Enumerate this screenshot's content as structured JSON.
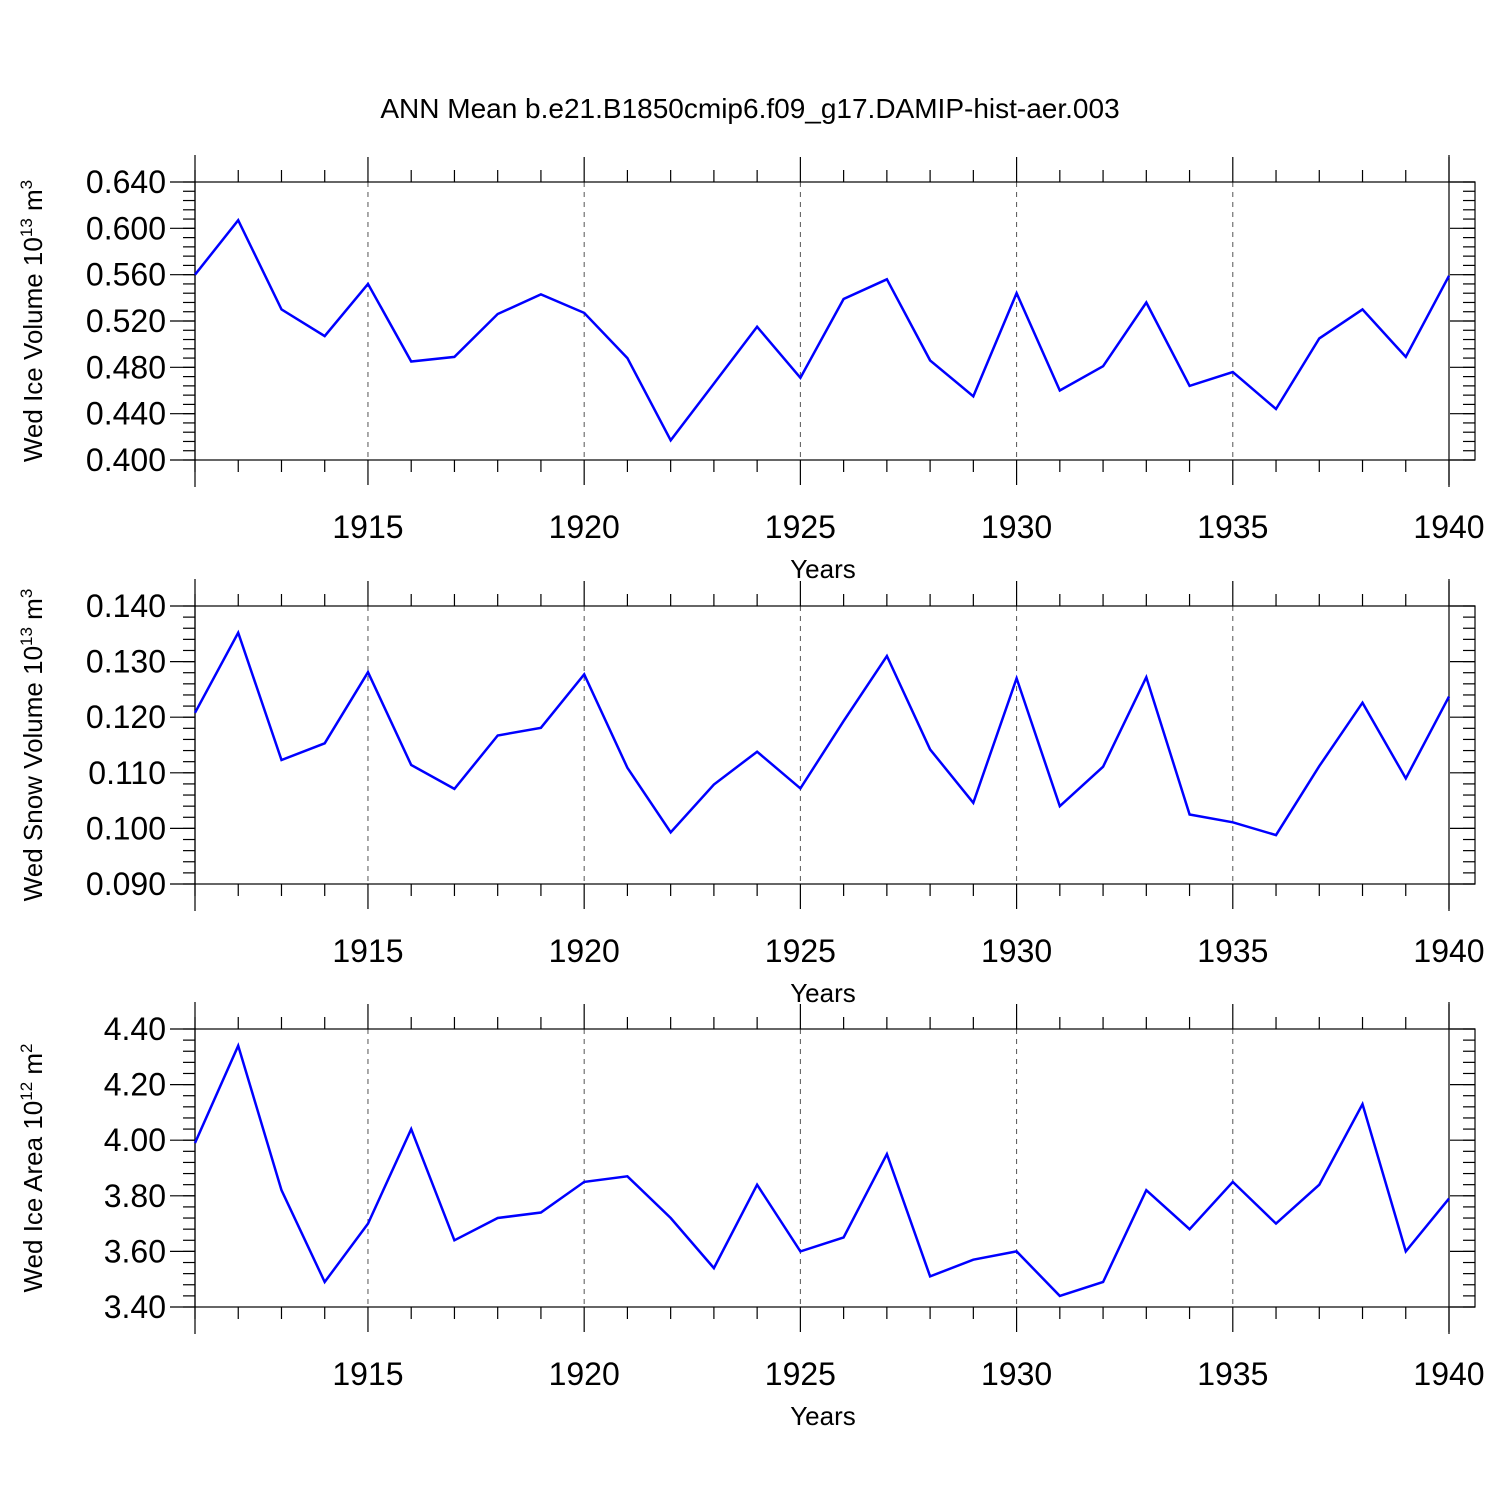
{
  "title": "ANN Mean b.e21.B1850cmip6.f09_g17.DAMIP-hist-aer.003",
  "line_color": "#0000ff",
  "chart_data": [
    {
      "type": "line",
      "ylabel": "Wed Ice Volume 10",
      "yunit_exp": "13",
      "yunit_base": "m",
      "yunit_pow": "3",
      "xlabel": "Years",
      "xlim": [
        1911,
        1940
      ],
      "ylim": [
        0.4,
        0.64
      ],
      "yticks": [
        "0.400",
        "0.440",
        "0.480",
        "0.520",
        "0.560",
        "0.600",
        "0.640"
      ],
      "yminor_step": 0.008,
      "xticks": [
        1915,
        1920,
        1925,
        1930,
        1935,
        1940
      ],
      "x": [
        1911,
        1912,
        1913,
        1914,
        1915,
        1916,
        1917,
        1918,
        1919,
        1920,
        1921,
        1922,
        1923,
        1924,
        1925,
        1926,
        1927,
        1928,
        1929,
        1930,
        1931,
        1932,
        1933,
        1934,
        1935,
        1936,
        1937,
        1938,
        1939,
        1940
      ],
      "values": [
        0.56,
        0.607,
        0.53,
        0.507,
        0.552,
        0.485,
        0.489,
        0.526,
        0.543,
        0.527,
        0.488,
        0.417,
        0.466,
        0.515,
        0.471,
        0.539,
        0.556,
        0.486,
        0.455,
        0.544,
        0.46,
        0.481,
        0.536,
        0.464,
        0.476,
        0.444,
        0.505,
        0.53,
        0.489,
        0.559
      ]
    },
    {
      "type": "line",
      "ylabel": "Wed Snow Volume 10",
      "yunit_exp": "13",
      "yunit_base": "m",
      "yunit_pow": "3",
      "xlabel": "Years",
      "xlim": [
        1911,
        1940
      ],
      "ylim": [
        0.09,
        0.14
      ],
      "yticks": [
        "0.090",
        "0.100",
        "0.110",
        "0.120",
        "0.130",
        "0.140"
      ],
      "yminor_step": 0.002,
      "xticks": [
        1915,
        1920,
        1925,
        1930,
        1935,
        1940
      ],
      "x": [
        1911,
        1912,
        1913,
        1914,
        1915,
        1916,
        1917,
        1918,
        1919,
        1920,
        1921,
        1922,
        1923,
        1924,
        1925,
        1926,
        1927,
        1928,
        1929,
        1930,
        1931,
        1932,
        1933,
        1934,
        1935,
        1936,
        1937,
        1938,
        1939,
        1940
      ],
      "values": [
        0.1208,
        0.1352,
        0.1123,
        0.1153,
        0.1281,
        0.1114,
        0.1071,
        0.1167,
        0.1181,
        0.1277,
        0.1109,
        0.0993,
        0.1079,
        0.1138,
        0.1072,
        0.1193,
        0.131,
        0.1142,
        0.1046,
        0.127,
        0.104,
        0.1111,
        0.1272,
        0.1025,
        0.1011,
        0.0988,
        0.1112,
        0.1226,
        0.109,
        0.1237
      ]
    },
    {
      "type": "line",
      "ylabel": "Wed Ice Area 10",
      "yunit_exp": "12",
      "yunit_base": "m",
      "yunit_pow": "2",
      "xlabel": "Years",
      "xlim": [
        1911,
        1940
      ],
      "ylim": [
        3.4,
        4.4
      ],
      "yticks": [
        "3.40",
        "3.60",
        "3.80",
        "4.00",
        "4.20",
        "4.40"
      ],
      "yminor_step": 0.04,
      "xticks": [
        1915,
        1920,
        1925,
        1930,
        1935,
        1940
      ],
      "x": [
        1911,
        1912,
        1913,
        1914,
        1915,
        1916,
        1917,
        1918,
        1919,
        1920,
        1921,
        1922,
        1923,
        1924,
        1925,
        1926,
        1927,
        1928,
        1929,
        1930,
        1931,
        1932,
        1933,
        1934,
        1935,
        1936,
        1937,
        1938,
        1939,
        1940
      ],
      "values": [
        3.99,
        4.34,
        3.82,
        3.49,
        3.7,
        4.04,
        3.64,
        3.72,
        3.74,
        3.85,
        3.87,
        3.72,
        3.54,
        3.84,
        3.6,
        3.65,
        3.95,
        3.51,
        3.57,
        3.6,
        3.44,
        3.49,
        3.82,
        3.68,
        3.85,
        3.7,
        3.84,
        4.13,
        3.6,
        3.79
      ]
    }
  ]
}
